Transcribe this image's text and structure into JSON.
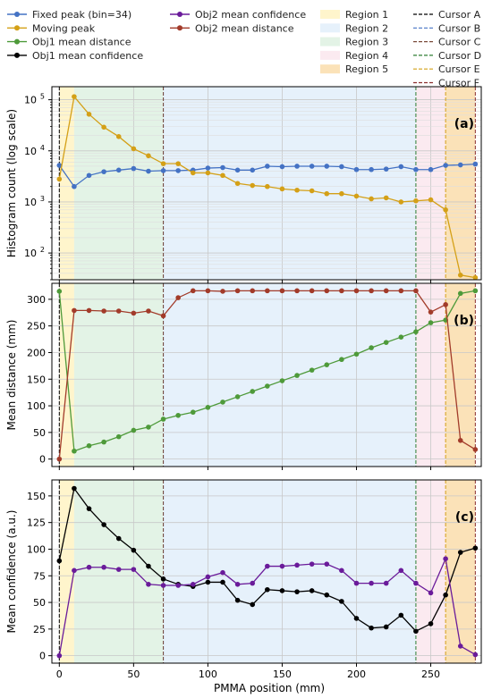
{
  "chart_data": {
    "type": "line",
    "xlabel": "PMMA position (mm)",
    "xlim": [
      -5,
      284
    ],
    "x_ticks": [
      0,
      50,
      100,
      150,
      200,
      250
    ],
    "x": [
      0,
      10,
      20,
      30,
      40,
      50,
      60,
      70,
      80,
      90,
      100,
      110,
      120,
      130,
      140,
      150,
      160,
      170,
      180,
      190,
      200,
      210,
      220,
      230,
      240,
      250,
      260,
      270,
      280
    ],
    "legend": {
      "placement": "top",
      "entries": [
        {
          "label": "Fixed peak (bin=34)",
          "kind": "series",
          "color": "#4472c4"
        },
        {
          "label": "Moving peak",
          "kind": "series",
          "color": "#d4a017"
        },
        {
          "label": "Obj1 mean distance",
          "kind": "series",
          "color": "#4e9a3a"
        },
        {
          "label": "Obj2 mean distance",
          "kind": "series",
          "color": "#a23b2a"
        },
        {
          "label": "Obj1 mean confidence",
          "kind": "series",
          "color": "#000000"
        },
        {
          "label": "Obj2 mean confidence",
          "kind": "series",
          "color": "#6a1b9a"
        },
        {
          "label": "Region 1",
          "kind": "region",
          "color": "#fff5cc"
        },
        {
          "label": "Region 2",
          "kind": "region",
          "color": "#e6f1fb"
        },
        {
          "label": "Region 3",
          "kind": "region",
          "color": "#e3f3e6"
        },
        {
          "label": "Region 4",
          "kind": "region",
          "color": "#fbeaf0"
        },
        {
          "label": "Region 5",
          "kind": "region",
          "color": "#fbe2b8"
        },
        {
          "label": "Cursor A",
          "kind": "cursor",
          "color": "#000000"
        },
        {
          "label": "Cursor B",
          "kind": "cursor",
          "color": "#4472c4"
        },
        {
          "label": "Cursor C",
          "kind": "cursor",
          "color": "#7a4a3a"
        },
        {
          "label": "Cursor D",
          "kind": "cursor",
          "color": "#2e7d32"
        },
        {
          "label": "Cursor E",
          "kind": "cursor",
          "color": "#d4a017"
        },
        {
          "label": "Cursor F",
          "kind": "cursor",
          "color": "#8b2e2e"
        }
      ]
    },
    "regions": [
      {
        "name": "Region 1",
        "from": 0,
        "to": 10,
        "color": "#fff5cc"
      },
      {
        "name": "Region 3",
        "from": 10,
        "to": 70,
        "color": "#e3f3e6"
      },
      {
        "name": "Region 2",
        "from": 70,
        "to": 240,
        "color": "#e6f1fb"
      },
      {
        "name": "Region 4",
        "from": 240,
        "to": 260,
        "color": "#fbeaf0"
      },
      {
        "name": "Region 5",
        "from": 260,
        "to": 280,
        "color": "#fbe2b8"
      }
    ],
    "cursors": [
      {
        "name": "Cursor A",
        "x": 0,
        "color": "#000000"
      },
      {
        "name": "Cursor B",
        "x": 70,
        "color": "#4472c4"
      },
      {
        "name": "Cursor C",
        "x": 70,
        "color": "#7a4a3a"
      },
      {
        "name": "Cursor D",
        "x": 240,
        "color": "#2e7d32"
      },
      {
        "name": "Cursor E",
        "x": 260,
        "color": "#d4a017"
      },
      {
        "name": "Cursor F",
        "x": 280,
        "color": "#8b2e2e"
      }
    ],
    "panels": [
      {
        "label": "(a)",
        "ylabel": "Histogram count (log scale)",
        "yscale": "log",
        "ylim": [
          30,
          180000
        ],
        "y_ticks": [
          100,
          1000,
          10000,
          100000
        ],
        "y_tick_labels": [
          [
            "10",
            "2"
          ],
          [
            "10",
            "3"
          ],
          [
            "10",
            "4"
          ],
          [
            "10",
            "5"
          ]
        ],
        "series": [
          {
            "name": "Fixed peak (bin=34)",
            "color": "#4472c4",
            "values": [
              5200,
              2000,
              3300,
              3900,
              4200,
              4500,
              4000,
              4100,
              4100,
              4200,
              4600,
              4700,
              4200,
              4200,
              5000,
              4900,
              5000,
              5000,
              5000,
              4900,
              4300,
              4300,
              4400,
              4900,
              4300,
              4300,
              5200,
              5300,
              5500
            ]
          },
          {
            "name": "Moving peak",
            "color": "#d4a017",
            "values": [
              2800,
              115000,
              52000,
              29000,
              19000,
              11000,
              8000,
              5600,
              5600,
              3700,
              3700,
              3300,
              2300,
              2100,
              2000,
              1800,
              1700,
              1650,
              1450,
              1450,
              1300,
              1150,
              1200,
              1000,
              1050,
              1100,
              700,
              37,
              33
            ]
          }
        ]
      },
      {
        "label": "(b)",
        "ylabel": "Mean distance (mm)",
        "yscale": "linear",
        "ylim": [
          -14,
          330
        ],
        "y_ticks": [
          0,
          50,
          100,
          150,
          200,
          250,
          300
        ],
        "series": [
          {
            "name": "Obj1 mean distance",
            "color": "#4e9a3a",
            "values": [
              315,
              15,
              25,
              32,
              42,
              54,
              60,
              75,
              82,
              88,
              97,
              107,
              117,
              127,
              137,
              147,
              157,
              167,
              177,
              187,
              197,
              209,
              219,
              229,
              239,
              256,
              261,
              311,
              316
            ]
          },
          {
            "name": "Obj2 mean distance",
            "color": "#a23b2a",
            "values": [
              0,
              279,
              279,
              278,
              278,
              274,
              278,
              269,
              303,
              316,
              316,
              315,
              316,
              316,
              316,
              316,
              316,
              316,
              316,
              316,
              316,
              316,
              316,
              316,
              316,
              276,
              290,
              35,
              18
            ]
          }
        ]
      },
      {
        "label": "(c)",
        "ylabel": "Mean confidence (a.u.)",
        "yscale": "linear",
        "ylim": [
          -7,
          165
        ],
        "y_ticks": [
          0,
          25,
          50,
          75,
          100,
          125,
          150
        ],
        "series": [
          {
            "name": "Obj1 mean confidence",
            "color": "#000000",
            "values": [
              89,
              157,
              138,
              123,
              110,
              99,
              84,
              72,
              67,
              65,
              69,
              69,
              52,
              48,
              62,
              61,
              60,
              61,
              57,
              51,
              35,
              26,
              27,
              38,
              23,
              30,
              57,
              97,
              101
            ]
          },
          {
            "name": "Obj2 mean confidence",
            "color": "#6a1b9a",
            "values": [
              0,
              80,
              83,
              83,
              81,
              81,
              67,
              66,
              66,
              67,
              74,
              78,
              67,
              68,
              84,
              84,
              85,
              86,
              86,
              80,
              68,
              68,
              68,
              80,
              68,
              59,
              91,
              9,
              1
            ]
          }
        ]
      }
    ]
  }
}
